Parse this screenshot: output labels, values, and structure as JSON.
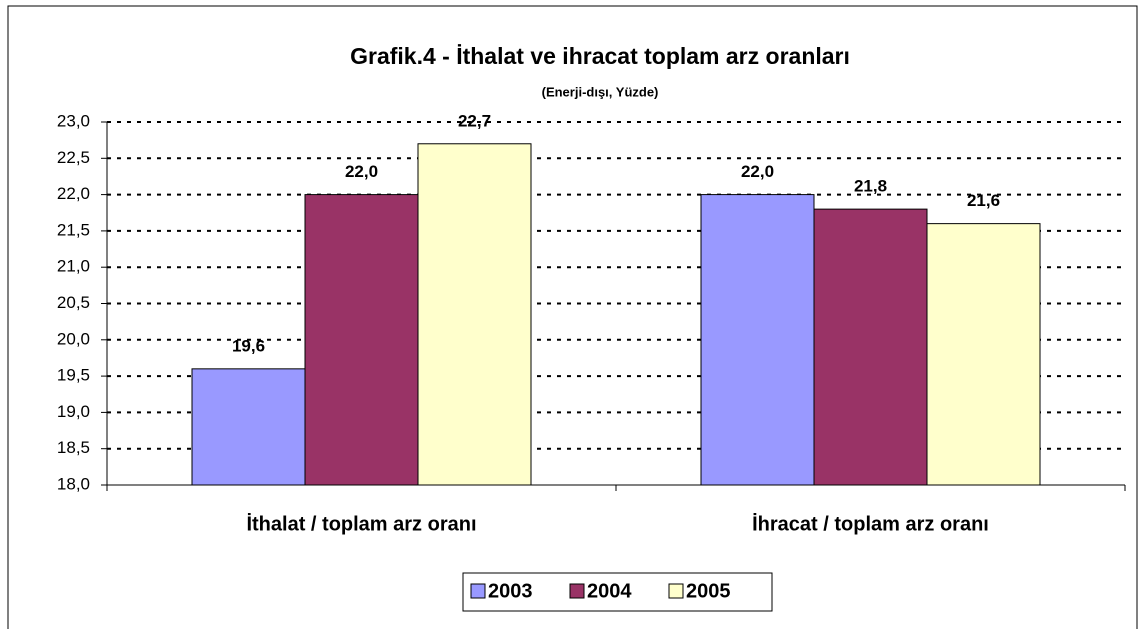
{
  "chart_data": {
    "type": "bar",
    "title": "Grafik.4 - İthalat ve ihracat toplam arz oranları",
    "subtitle": "(Enerji-dışı, Yüzde)",
    "categories": [
      "İthalat / toplam arz oranı",
      "İhracat / toplam arz oranı"
    ],
    "series": [
      {
        "name": "2003",
        "color": "#9999ff",
        "values": [
          19.6,
          22.0
        ],
        "value_labels": [
          "19,6",
          "22,0"
        ]
      },
      {
        "name": "2004",
        "color": "#993366",
        "values": [
          22.0,
          21.8
        ],
        "value_labels": [
          "22,0",
          "21,8"
        ]
      },
      {
        "name": "2005",
        "color": "#ffffcc",
        "values": [
          22.7,
          21.6
        ],
        "value_labels": [
          "22,7",
          "21,6"
        ]
      }
    ],
    "ylim": [
      18,
      23
    ],
    "yticks": [
      {
        "value": 18,
        "label": "18,0"
      },
      {
        "value": 18.5,
        "label": "18,5"
      },
      {
        "value": 19,
        "label": "19,0"
      },
      {
        "value": 19.5,
        "label": "19,5"
      },
      {
        "value": 20,
        "label": "20,0"
      },
      {
        "value": 20.5,
        "label": "20,5"
      },
      {
        "value": 21,
        "label": "21,0"
      },
      {
        "value": 21.5,
        "label": "21,5"
      },
      {
        "value": 22,
        "label": "22,0"
      },
      {
        "value": 22.5,
        "label": "22,5"
      },
      {
        "value": 23,
        "label": "23,0"
      }
    ],
    "grid": true,
    "legend": "bottom"
  }
}
